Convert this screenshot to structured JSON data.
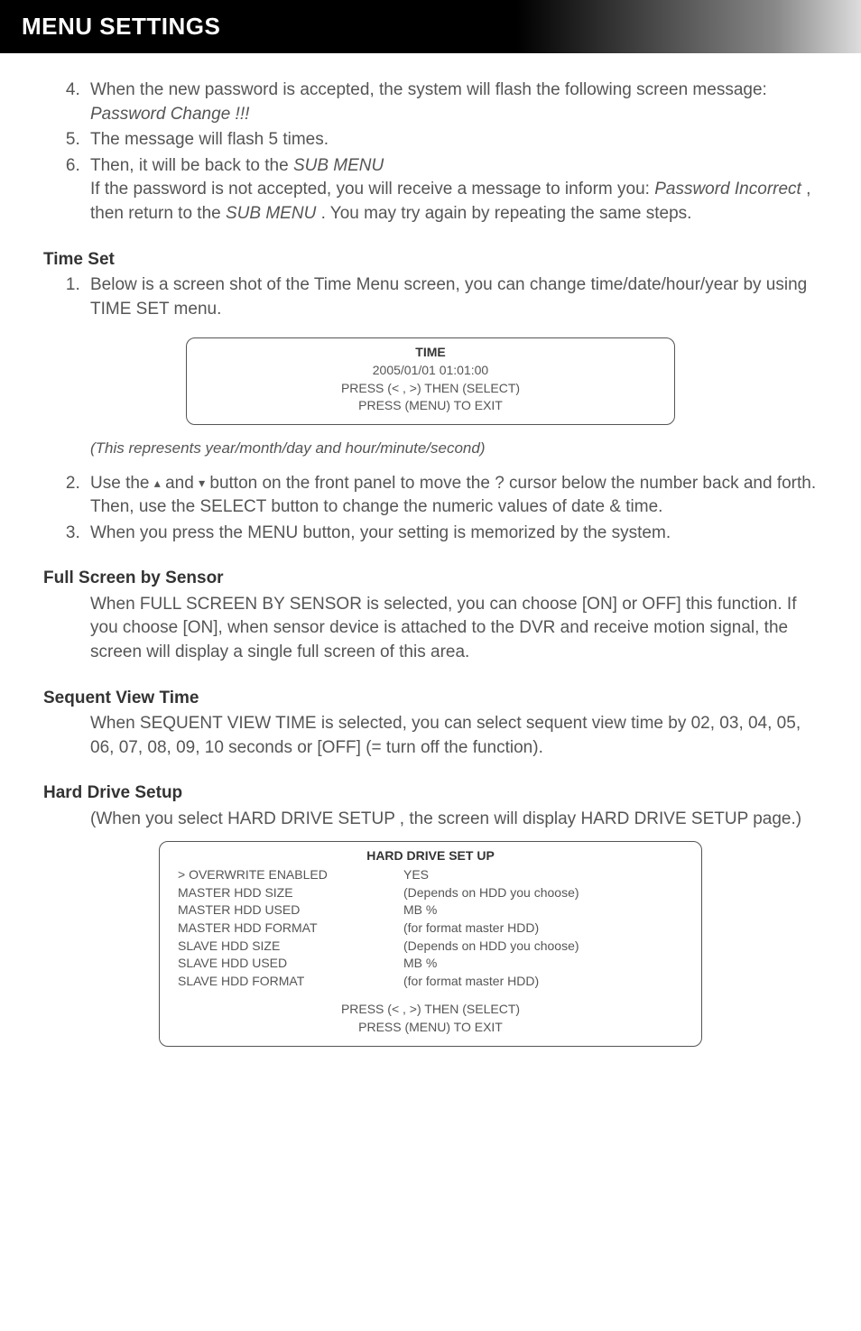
{
  "header": {
    "title": "MENU SETTINGS"
  },
  "list1": {
    "start": 4,
    "items": [
      {
        "pre": "When the new password is accepted, the system will flash the following screen message: ",
        "em": "Password Change !!!"
      },
      {
        "pre": "The message will flash 5 times."
      },
      {
        "pre": "Then, it will be back to the ",
        "em": "SUB MENU",
        "cont1": "If the password is not accepted, you will receive a message to inform you: ",
        "cont_em1": "Password Incorrect ",
        "cont2": ", then return to the ",
        "cont_em2": "SUB MENU ",
        "cont3": ". You may try again by repeating the same steps."
      }
    ]
  },
  "time_set": {
    "heading": "Time Set",
    "item1": "Below is a screen shot of the Time Menu screen, you can change time/date/hour/year by using TIME SET menu.",
    "osd": {
      "title": "TIME",
      "line1": "2005/01/01    01:01:00",
      "line2": "PRESS (< , >) THEN (SELECT)",
      "line3": "PRESS (MENU) TO EXIT"
    },
    "note": "(This represents year/month/day and hour/minute/second)",
    "item2_a": "Use the",
    "item2_b": " and ",
    "item2_c": " button on the front panel to move the ? cursor below the number back and forth. Then, use the SELECT button to change the numeric values of date & time.",
    "item3": "When you press the MENU button, your setting is memorized by the system."
  },
  "full_screen": {
    "heading": "Full Screen by Sensor",
    "body": "When FULL SCREEN BY SENSOR is selected, you can choose [ON] or OFF] this function. If you choose [ON], when sensor device is attached to the DVR and receive motion signal, the screen will display a single full screen of this area."
  },
  "sequent": {
    "heading": "Sequent View Time",
    "body": "When SEQUENT VIEW TIME is selected, you can select sequent view time by 02, 03, 04, 05, 06, 07, 08, 09, 10 seconds or [OFF] (= turn off the function)."
  },
  "hdd": {
    "heading": "Hard Drive Setup",
    "body": "(When you select HARD DRIVE SETUP , the screen will display HARD DRIVE SETUP page.)",
    "osd": {
      "title": "HARD DRIVE SET UP",
      "rows": [
        {
          "c1": "> OVERWRITE ENABLED",
          "c2": "YES"
        },
        {
          "c1": "MASTER HDD SIZE",
          "c2": "(Depends on HDD you choose)"
        },
        {
          "c1": "MASTER HDD USED",
          "c2": "MB %"
        },
        {
          "c1": "MASTER HDD FORMAT",
          "c2": "(for format master HDD)"
        },
        {
          "c1": "SLAVE HDD SIZE",
          "c2": "(Depends on HDD you choose)"
        },
        {
          "c1": "SLAVE  HDD USED",
          "c2": "MB %"
        },
        {
          "c1": "SLAVE  HDD FORMAT",
          "c2": "(for format master HDD)"
        }
      ],
      "footer1": "PRESS (< , >) THEN (SELECT)",
      "footer2": "PRESS (MENU) TO EXIT"
    }
  }
}
